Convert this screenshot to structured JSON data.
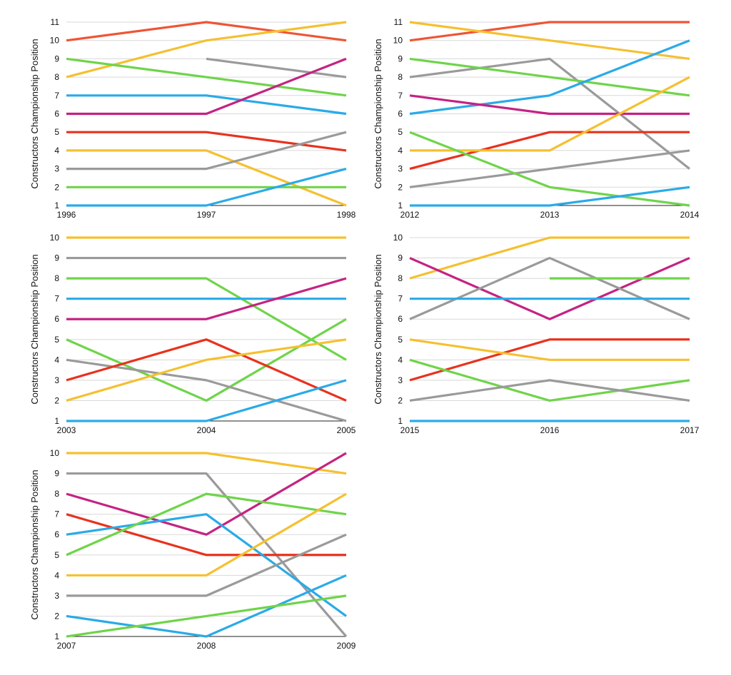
{
  "colors": {
    "red": "#e8321e",
    "orange": "#ee5535",
    "yellow": "#f5c030",
    "green": "#6fd44a",
    "gray": "#9a9a9a",
    "blue": "#2aaae8",
    "magenta": "#c42383",
    "grid": "#d8d8d8",
    "axis": "#222222"
  },
  "chart_data": [
    {
      "type": "line",
      "ylabel": "Constructors Championship Position",
      "x": [
        "1996",
        "1997",
        "1998"
      ],
      "ylim": [
        1,
        11
      ],
      "yticks": [
        1,
        2,
        3,
        4,
        5,
        6,
        7,
        8,
        9,
        10,
        11
      ],
      "series": [
        {
          "color": "orange",
          "values": [
            10,
            11,
            10
          ]
        },
        {
          "color": "yellow",
          "values": [
            8,
            10,
            11
          ]
        },
        {
          "color": "gray",
          "values": [
            null,
            9,
            8
          ]
        },
        {
          "color": "green",
          "values": [
            9,
            8,
            7
          ]
        },
        {
          "color": "blue",
          "values": [
            7,
            7,
            6
          ]
        },
        {
          "color": "magenta",
          "values": [
            6,
            6,
            9
          ]
        },
        {
          "color": "red",
          "values": [
            5,
            5,
            4
          ]
        },
        {
          "color": "yellow",
          "values": [
            4,
            4,
            1
          ]
        },
        {
          "color": "gray",
          "values": [
            3,
            3,
            5
          ]
        },
        {
          "color": "green",
          "values": [
            2,
            2,
            2
          ]
        },
        {
          "color": "blue",
          "values": [
            1,
            1,
            3
          ]
        }
      ]
    },
    {
      "type": "line",
      "ylabel": "Constructors Championship Position",
      "x": [
        "2012",
        "2013",
        "2014"
      ],
      "ylim": [
        1,
        11
      ],
      "yticks": [
        1,
        2,
        3,
        4,
        5,
        6,
        7,
        8,
        9,
        10,
        11
      ],
      "series": [
        {
          "color": "orange",
          "values": [
            10,
            11,
            11
          ]
        },
        {
          "color": "yellow",
          "values": [
            11,
            10,
            9
          ]
        },
        {
          "color": "gray",
          "values": [
            8,
            9,
            3
          ]
        },
        {
          "color": "green",
          "values": [
            9,
            8,
            7
          ]
        },
        {
          "color": "blue",
          "values": [
            6,
            7,
            10
          ]
        },
        {
          "color": "magenta",
          "values": [
            7,
            6,
            6
          ]
        },
        {
          "color": "red",
          "values": [
            3,
            5,
            5
          ]
        },
        {
          "color": "yellow",
          "values": [
            4,
            4,
            8
          ]
        },
        {
          "color": "gray",
          "values": [
            2,
            3,
            4
          ]
        },
        {
          "color": "green",
          "values": [
            5,
            2,
            1
          ]
        },
        {
          "color": "blue",
          "values": [
            1,
            1,
            2
          ]
        }
      ]
    },
    {
      "type": "line",
      "ylabel": "Constructors Championship Position",
      "x": [
        "2003",
        "2004",
        "2005"
      ],
      "ylim": [
        1,
        10
      ],
      "yticks": [
        1,
        2,
        3,
        4,
        5,
        6,
        7,
        8,
        9,
        10
      ],
      "series": [
        {
          "color": "yellow",
          "values": [
            10,
            10,
            10
          ]
        },
        {
          "color": "gray",
          "values": [
            9,
            9,
            9
          ]
        },
        {
          "color": "green",
          "values": [
            8,
            8,
            4
          ]
        },
        {
          "color": "blue",
          "values": [
            7,
            7,
            7
          ]
        },
        {
          "color": "magenta",
          "values": [
            6,
            6,
            8
          ]
        },
        {
          "color": "green",
          "values": [
            5,
            2,
            6
          ]
        },
        {
          "color": "gray",
          "values": [
            4,
            3,
            1
          ]
        },
        {
          "color": "red",
          "values": [
            3,
            5,
            2
          ]
        },
        {
          "color": "yellow",
          "values": [
            2,
            4,
            5
          ]
        },
        {
          "color": "blue",
          "values": [
            1,
            1,
            3
          ]
        }
      ]
    },
    {
      "type": "line",
      "ylabel": "Constructors Championship Position",
      "x": [
        "2015",
        "2016",
        "2017"
      ],
      "ylim": [
        1,
        10
      ],
      "yticks": [
        1,
        2,
        3,
        4,
        5,
        6,
        7,
        8,
        9,
        10
      ],
      "series": [
        {
          "color": "yellow",
          "values": [
            8,
            10,
            10
          ]
        },
        {
          "color": "magenta",
          "values": [
            9,
            6,
            9
          ]
        },
        {
          "color": "gray",
          "values": [
            6,
            9,
            6
          ]
        },
        {
          "color": "green",
          "values": [
            null,
            8,
            8
          ]
        },
        {
          "color": "blue",
          "values": [
            7,
            7,
            7
          ]
        },
        {
          "color": "red",
          "values": [
            3,
            5,
            5
          ]
        },
        {
          "color": "yellow",
          "values": [
            5,
            4,
            4
          ]
        },
        {
          "color": "green",
          "values": [
            4,
            2,
            3
          ]
        },
        {
          "color": "gray",
          "values": [
            2,
            3,
            2
          ]
        },
        {
          "color": "blue",
          "values": [
            1,
            1,
            1
          ]
        }
      ]
    },
    {
      "type": "line",
      "ylabel": "Constructors Championship Position",
      "x": [
        "2007",
        "2008",
        "2009"
      ],
      "ylim": [
        1,
        10
      ],
      "yticks": [
        1,
        2,
        3,
        4,
        5,
        6,
        7,
        8,
        9,
        10
      ],
      "series": [
        {
          "color": "yellow",
          "values": [
            10,
            10,
            9
          ]
        },
        {
          "color": "gray",
          "values": [
            9,
            9,
            1
          ]
        },
        {
          "color": "magenta",
          "values": [
            8,
            6,
            10
          ]
        },
        {
          "color": "red",
          "values": [
            7,
            5,
            5
          ]
        },
        {
          "color": "blue",
          "values": [
            6,
            7,
            2
          ]
        },
        {
          "color": "green",
          "values": [
            5,
            8,
            7
          ]
        },
        {
          "color": "yellow",
          "values": [
            4,
            4,
            8
          ]
        },
        {
          "color": "gray",
          "values": [
            3,
            3,
            6
          ]
        },
        {
          "color": "blue",
          "values": [
            2,
            1,
            4
          ]
        },
        {
          "color": "green",
          "values": [
            1,
            2,
            3
          ]
        }
      ]
    }
  ]
}
